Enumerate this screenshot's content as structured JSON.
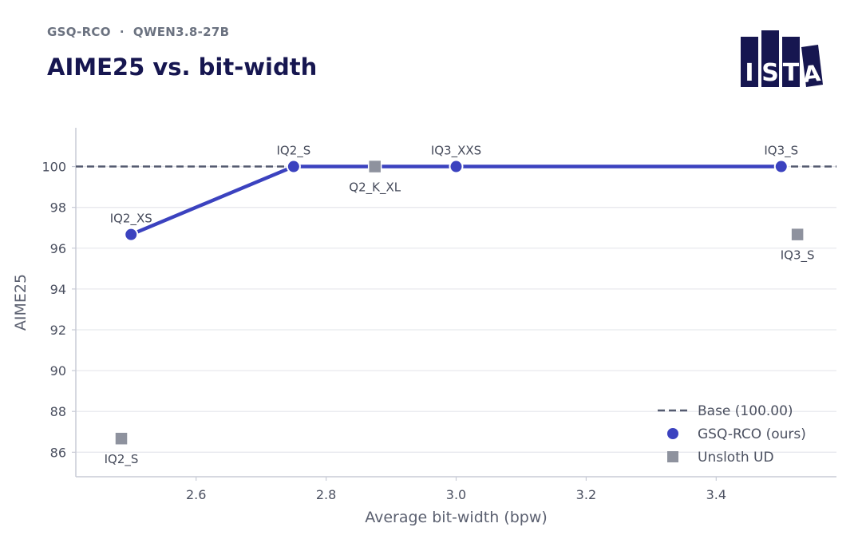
{
  "header": {
    "subtitle": "GSQ-RCO  ·  QWEN3.8-27B",
    "title": "AIME25 vs. bit-width"
  },
  "logo": {
    "letters": [
      "I",
      "S",
      "T",
      "A"
    ]
  },
  "colors": {
    "title": "#161650",
    "ours": "#3b42bf",
    "unsloth": "#8e929e",
    "base": "#555b70",
    "grid": "#e8e9ee",
    "axis": "#c8cbd6",
    "logo": "#161650"
  },
  "chart_data": {
    "type": "line",
    "xlabel": "Average bit-width (bpw)",
    "ylabel": "AIME25",
    "xlim": [
      2.415,
      3.585
    ],
    "ylim": [
      84.8,
      101.9
    ],
    "xticks": [
      2.6,
      2.8,
      3.0,
      3.2,
      3.4
    ],
    "yticks": [
      86,
      88,
      90,
      92,
      94,
      96,
      98,
      100
    ],
    "grid": "horizontal",
    "legend_position": "bottom-right",
    "base": {
      "name": "Base (100.00)",
      "value": 100.0
    },
    "series": [
      {
        "name": "GSQ-RCO (ours)",
        "marker": "circle",
        "line": true,
        "points": [
          {
            "label": "IQ2_XS",
            "x": 2.5,
            "y": 96.67
          },
          {
            "label": "IQ2_S",
            "x": 2.75,
            "y": 100.0
          },
          {
            "label": "IQ3_XXS",
            "x": 3.0,
            "y": 100.0
          },
          {
            "label": "IQ3_S",
            "x": 3.5,
            "y": 100.0
          }
        ]
      },
      {
        "name": "Unsloth UD",
        "marker": "square",
        "line": false,
        "points": [
          {
            "label": "IQ2_S",
            "x": 2.485,
            "y": 86.67
          },
          {
            "label": "Q2_K_XL",
            "x": 2.875,
            "y": 100.0
          },
          {
            "label": "IQ3_S",
            "x": 3.525,
            "y": 96.67
          }
        ]
      }
    ]
  }
}
